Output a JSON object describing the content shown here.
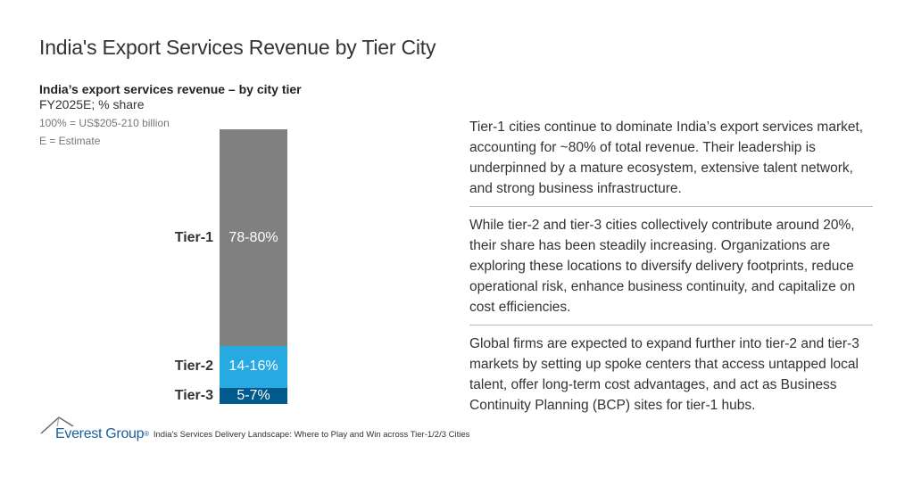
{
  "page_title": "India's Export Services Revenue by Tier City",
  "chart_data": {
    "type": "bar",
    "stacked": true,
    "title": "India’s export services revenue – by city tier",
    "subtitle": "FY2025E; % share",
    "notes": [
      "100% = US$205-210 billion",
      "E = Estimate"
    ],
    "categories": [
      "Tier-1",
      "Tier-2",
      "Tier-3"
    ],
    "labels": [
      "78-80%",
      "14-16%",
      "5-7%"
    ],
    "ranges": [
      [
        78,
        80
      ],
      [
        14,
        16
      ],
      [
        5,
        7
      ]
    ],
    "values": [
      79,
      15,
      6
    ],
    "colors": [
      "#808080",
      "#27a9e1",
      "#005a8c"
    ],
    "ylim": [
      0,
      100
    ],
    "grid": false
  },
  "paragraphs": [
    "Tier-1 cities continue to dominate India’s export services market, accounting for ~80% of total revenue. Their leadership is underpinned by a mature ecosystem, extensive talent network, and strong business infrastructure.",
    "While tier-2 and tier-3 cities collectively contribute around 20%, their share has been steadily increasing. Organizations are exploring these locations to diversify delivery footprints, reduce operational risk, enhance business continuity, and capitalize on cost efficiencies.",
    "Global firms are expected to expand further into tier-2 and tier-3 markets by setting up spoke centers that access untapped local talent, offer long-term cost advantages, and act as Business Continuity Planning (BCP) sites for tier-1 hubs."
  ],
  "footer": {
    "logo": "Everest Group",
    "logo_mark": "®",
    "source": "India's Services Delivery Landscape: Where to Play and Win across Tier-1/2/3 Cities"
  }
}
